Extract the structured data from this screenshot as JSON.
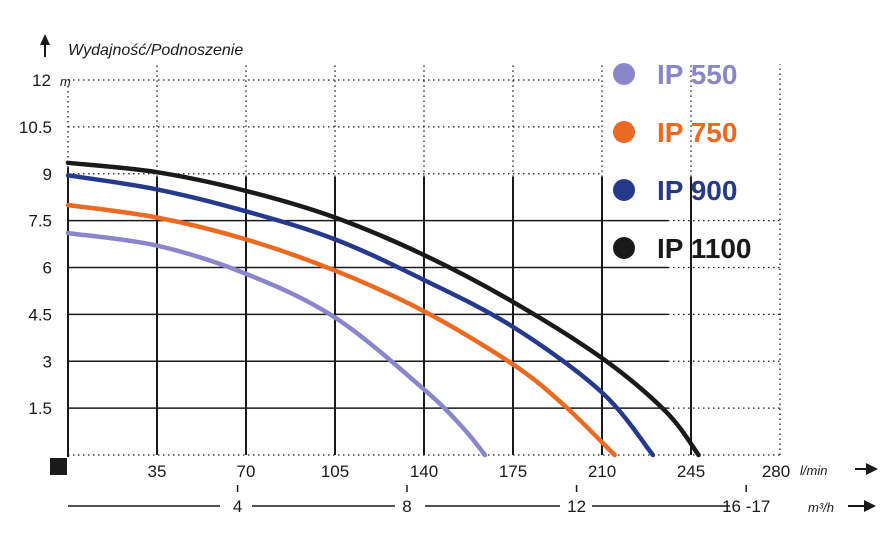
{
  "chart_data": {
    "type": "line",
    "title": "",
    "ylabel": "Wydajność/Podnoszenie",
    "y_unit": "m",
    "x_unit": "l/min",
    "x2_unit": "m³/h",
    "xlim": [
      0,
      280
    ],
    "ylim": [
      0,
      12
    ],
    "grid": true,
    "legend_position": "top-right",
    "x_ticks": [
      {
        "value": 35,
        "label": "35"
      },
      {
        "value": 70,
        "label": "70"
      },
      {
        "value": 105,
        "label": "105"
      },
      {
        "value": 140,
        "label": "140"
      },
      {
        "value": 175,
        "label": "175"
      },
      {
        "value": 210,
        "label": "210"
      },
      {
        "value": 245,
        "label": "245"
      },
      {
        "value": 280,
        "label": "280"
      }
    ],
    "y_ticks": [
      {
        "value": 1.5,
        "label": "1.5"
      },
      {
        "value": 3,
        "label": "3"
      },
      {
        "value": 4.5,
        "label": "4.5"
      },
      {
        "value": 6,
        "label": "6"
      },
      {
        "value": 7.5,
        "label": "7.5"
      },
      {
        "value": 9,
        "label": "9"
      },
      {
        "value": 10.5,
        "label": "10.5"
      },
      {
        "value": 12,
        "label": "12"
      }
    ],
    "x2_ticks": [
      {
        "value": 66.7,
        "label": "4"
      },
      {
        "value": 133.3,
        "label": "8"
      },
      {
        "value": 200,
        "label": "12"
      },
      {
        "value": 266.7,
        "label": "16 -17"
      }
    ],
    "series": [
      {
        "name": "IP 550",
        "color": "#8b85c9",
        "x": [
          0,
          35,
          70,
          105,
          140,
          155,
          164
        ],
        "y": [
          7.1,
          6.7,
          5.8,
          4.4,
          2.1,
          0.9,
          0
        ]
      },
      {
        "name": "IP 750",
        "color": "#ea6a22",
        "x": [
          0,
          35,
          70,
          105,
          140,
          175,
          195,
          215
        ],
        "y": [
          8.0,
          7.6,
          6.9,
          5.9,
          4.6,
          2.9,
          1.6,
          0
        ]
      },
      {
        "name": "IP 900",
        "color": "#263a8c",
        "x": [
          0,
          35,
          70,
          105,
          140,
          175,
          210,
          230
        ],
        "y": [
          8.95,
          8.5,
          7.8,
          6.9,
          5.6,
          4.1,
          2.0,
          0
        ]
      },
      {
        "name": "IP 1100",
        "color": "#1a1a1a",
        "x": [
          0,
          35,
          70,
          105,
          140,
          175,
          210,
          235,
          248
        ],
        "y": [
          9.35,
          9.05,
          8.45,
          7.6,
          6.4,
          4.9,
          3.1,
          1.4,
          0
        ]
      }
    ]
  }
}
